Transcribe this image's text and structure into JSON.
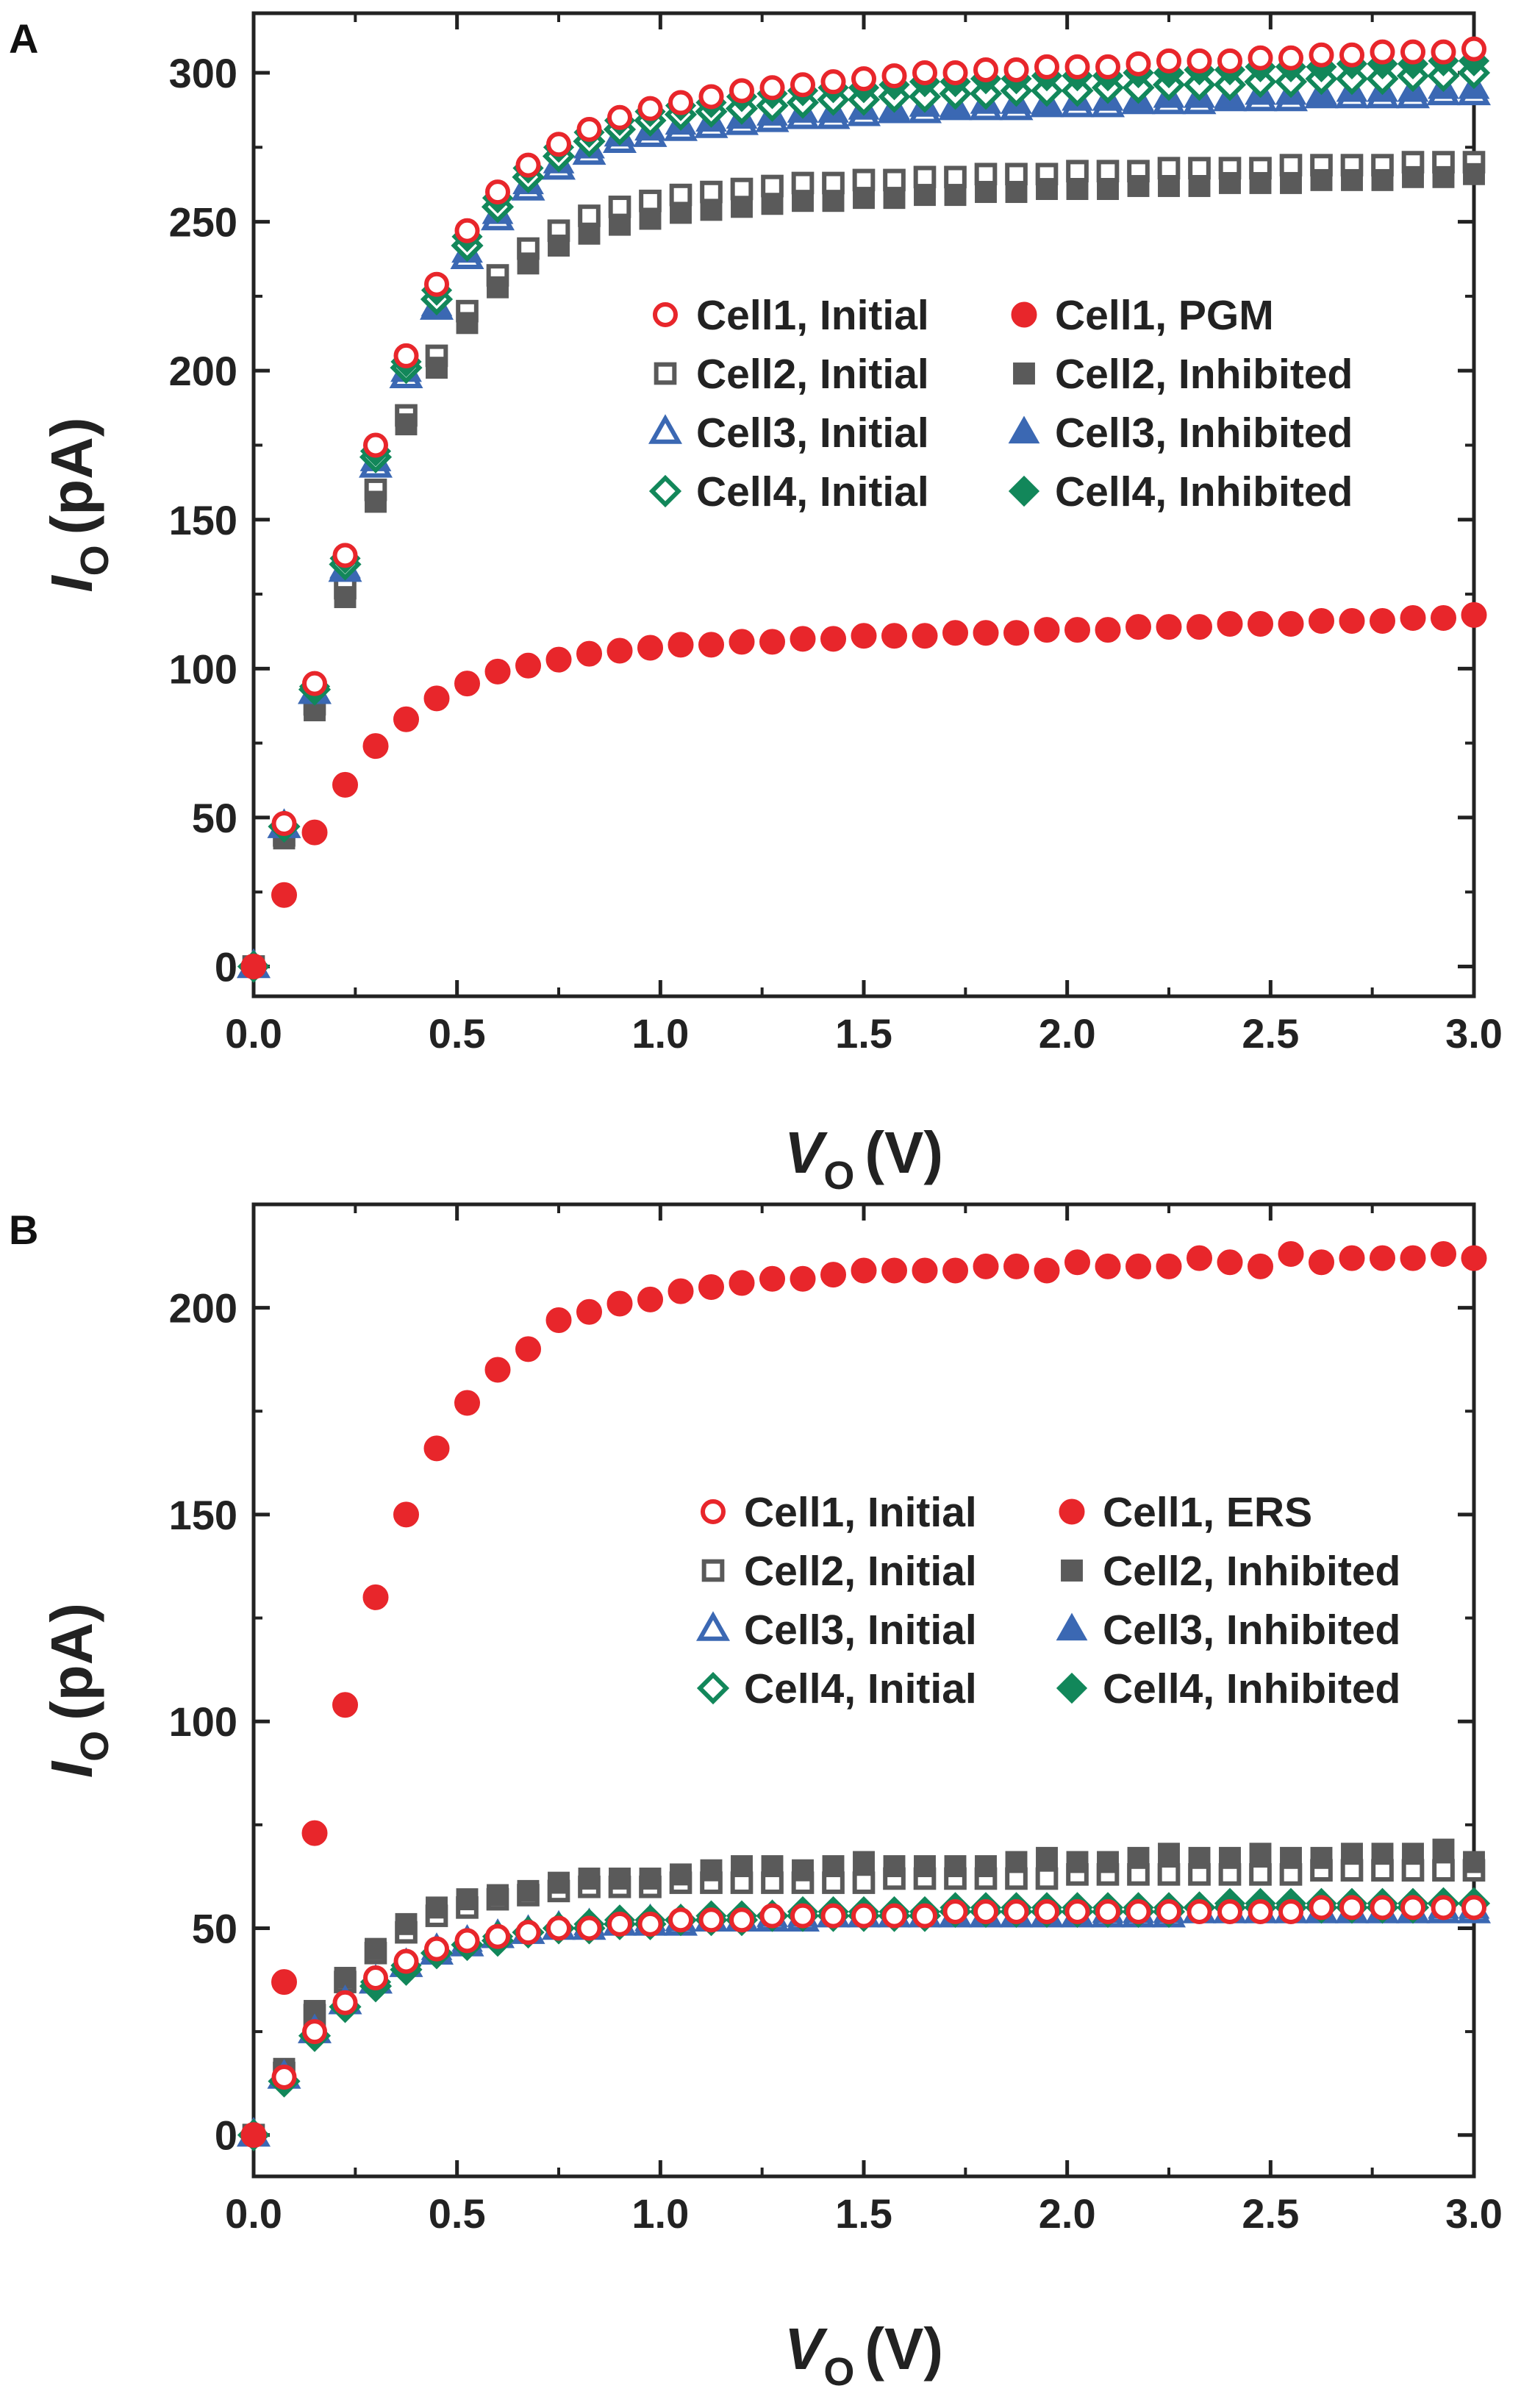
{
  "colors": {
    "cell1": "#e8262b",
    "cell2": "#5a5a5a",
    "cell3": "#3b68b3",
    "cell4": "#12875a",
    "axis": "#222222"
  },
  "chart_data": [
    {
      "type": "scatter",
      "panel_label": "A",
      "xlabel": "V",
      "xlabel_sub": "O",
      "xlabel_unit": "(V)",
      "ylabel": "I",
      "ylabel_sub": "O",
      "ylabel_unit": "(pA)",
      "xlim": [
        0,
        3
      ],
      "ylim": [
        -10,
        320
      ],
      "xticks": [
        0.0,
        0.5,
        1.0,
        1.5,
        2.0,
        2.5,
        3.0
      ],
      "xtick_labels": [
        "0.0",
        "0.5",
        "1.0",
        "1.5",
        "2.0",
        "2.5",
        "3.0"
      ],
      "yticks": [
        0,
        50,
        100,
        150,
        200,
        250,
        300
      ],
      "ytick_labels": [
        "0",
        "50",
        "100",
        "150",
        "200",
        "250",
        "300"
      ],
      "legend": {
        "position": "right-center",
        "entries": [
          {
            "label": "Cell1, Initial",
            "series": 0
          },
          {
            "label": "Cell1, PGM",
            "series": 1
          },
          {
            "label": "Cell2, Initial",
            "series": 2
          },
          {
            "label": "Cell2, Inhibited",
            "series": 3
          },
          {
            "label": "Cell3, Initial",
            "series": 4
          },
          {
            "label": "Cell3, Inhibited",
            "series": 5
          },
          {
            "label": "Cell4, Initial",
            "series": 6
          },
          {
            "label": "Cell4, Inhibited",
            "series": 7
          }
        ]
      },
      "x": [
        0.0,
        0.075,
        0.15,
        0.225,
        0.3,
        0.375,
        0.45,
        0.525,
        0.6,
        0.675,
        0.75,
        0.825,
        0.9,
        0.975,
        1.05,
        1.125,
        1.2,
        1.275,
        1.35,
        1.425,
        1.5,
        1.575,
        1.65,
        1.725,
        1.8,
        1.875,
        1.95,
        2.025,
        2.1,
        2.175,
        2.25,
        2.325,
        2.4,
        2.475,
        2.55,
        2.625,
        2.7,
        2.775,
        2.85,
        2.925,
        3.0
      ],
      "series": [
        {
          "name": "Cell1, Initial",
          "marker": "circle",
          "filled": false,
          "color": "cell1",
          "values": [
            0,
            48,
            95,
            138,
            175,
            205,
            229,
            247,
            260,
            269,
            276,
            281,
            285,
            288,
            290,
            292,
            294,
            295,
            296,
            297,
            298,
            299,
            300,
            300,
            301,
            301,
            302,
            302,
            302,
            303,
            304,
            304,
            304,
            305,
            305,
            306,
            306,
            307,
            307,
            307,
            308
          ]
        },
        {
          "name": "Cell1, PGM",
          "marker": "circle",
          "filled": true,
          "color": "cell1",
          "values": [
            0,
            24,
            45,
            61,
            74,
            83,
            90,
            95,
            99,
            101,
            103,
            105,
            106,
            107,
            108,
            108,
            109,
            109,
            110,
            110,
            111,
            111,
            111,
            112,
            112,
            112,
            113,
            113,
            113,
            114,
            114,
            114,
            115,
            115,
            115,
            116,
            116,
            116,
            117,
            117,
            118
          ]
        },
        {
          "name": "Cell2, Initial",
          "marker": "square",
          "filled": false,
          "color": "cell2",
          "values": [
            0,
            44,
            88,
            127,
            160,
            185,
            205,
            220,
            232,
            241,
            247,
            252,
            255,
            257,
            259,
            260,
            261,
            262,
            263,
            263,
            264,
            264,
            265,
            265,
            266,
            266,
            266,
            267,
            267,
            267,
            268,
            268,
            268,
            268,
            269,
            269,
            269,
            269,
            270,
            270,
            270
          ]
        },
        {
          "name": "Cell2, Inhibited",
          "marker": "square",
          "filled": true,
          "color": "cell2",
          "values": [
            0,
            43,
            86,
            124,
            156,
            182,
            201,
            216,
            228,
            236,
            242,
            246,
            249,
            251,
            253,
            254,
            255,
            256,
            257,
            257,
            258,
            258,
            259,
            259,
            260,
            260,
            261,
            261,
            261,
            262,
            262,
            262,
            263,
            263,
            263,
            264,
            264,
            264,
            265,
            265,
            266
          ]
        },
        {
          "name": "Cell3, Initial",
          "marker": "triangle",
          "filled": false,
          "color": "cell3",
          "values": [
            0,
            47,
            92,
            133,
            168,
            198,
            221,
            238,
            251,
            261,
            268,
            273,
            277,
            279,
            281,
            282,
            283,
            284,
            285,
            285,
            286,
            287,
            287,
            288,
            288,
            288,
            289,
            289,
            289,
            290,
            290,
            290,
            291,
            291,
            291,
            292,
            292,
            292,
            292,
            293,
            293
          ]
        },
        {
          "name": "Cell3, Inhibited",
          "marker": "triangle",
          "filled": true,
          "color": "cell3",
          "values": [
            0,
            47,
            92,
            134,
            170,
            200,
            222,
            240,
            253,
            263,
            270,
            275,
            279,
            281,
            283,
            284,
            285,
            286,
            287,
            287,
            288,
            288,
            289,
            289,
            290,
            290,
            290,
            291,
            291,
            291,
            292,
            292,
            292,
            293,
            293,
            293,
            294,
            294,
            294,
            295,
            295
          ]
        },
        {
          "name": "Cell4, Initial",
          "marker": "diamond",
          "filled": false,
          "color": "cell4",
          "values": [
            0,
            47,
            93,
            135,
            171,
            201,
            224,
            242,
            255,
            265,
            272,
            277,
            281,
            284,
            286,
            287,
            288,
            289,
            290,
            291,
            291,
            292,
            292,
            293,
            293,
            294,
            294,
            294,
            295,
            295,
            296,
            296,
            296,
            297,
            297,
            298,
            298,
            298,
            299,
            299,
            300
          ]
        },
        {
          "name": "Cell4, Inhibited",
          "marker": "diamond",
          "filled": true,
          "color": "cell4",
          "values": [
            0,
            47,
            94,
            137,
            173,
            203,
            227,
            245,
            258,
            268,
            275,
            280,
            284,
            287,
            289,
            290,
            292,
            293,
            294,
            295,
            295,
            296,
            297,
            297,
            298,
            298,
            299,
            299,
            299,
            300,
            300,
            301,
            301,
            302,
            302,
            302,
            303,
            303,
            303,
            304,
            304
          ]
        }
      ]
    },
    {
      "type": "scatter",
      "panel_label": "B",
      "xlabel": "V",
      "xlabel_sub": "O",
      "xlabel_unit": "(V)",
      "ylabel": "I",
      "ylabel_sub": "O",
      "ylabel_unit": "(pA)",
      "xlim": [
        0,
        3
      ],
      "ylim": [
        -10,
        225
      ],
      "xticks": [
        0.0,
        0.5,
        1.0,
        1.5,
        2.0,
        2.5,
        3.0
      ],
      "xtick_labels": [
        "0.0",
        "0.5",
        "1.0",
        "1.5",
        "2.0",
        "2.5",
        "3.0"
      ],
      "yticks": [
        0,
        50,
        100,
        150,
        200
      ],
      "ytick_labels": [
        "0",
        "50",
        "100",
        "150",
        "200"
      ],
      "legend": {
        "position": "right-center",
        "entries": [
          {
            "label": "Cell1, Initial",
            "series": 0
          },
          {
            "label": "Cell1, ERS",
            "series": 1
          },
          {
            "label": "Cell2, Initial",
            "series": 2
          },
          {
            "label": "Cell2, Inhibited",
            "series": 3
          },
          {
            "label": "Cell3, Initial",
            "series": 4
          },
          {
            "label": "Cell3, Inhibited",
            "series": 5
          },
          {
            "label": "Cell4, Initial",
            "series": 6
          },
          {
            "label": "Cell4, Inhibited",
            "series": 7
          }
        ]
      },
      "x": [
        0.0,
        0.075,
        0.15,
        0.225,
        0.3,
        0.375,
        0.45,
        0.525,
        0.6,
        0.675,
        0.75,
        0.825,
        0.9,
        0.975,
        1.05,
        1.125,
        1.2,
        1.275,
        1.35,
        1.425,
        1.5,
        1.575,
        1.65,
        1.725,
        1.8,
        1.875,
        1.95,
        2.025,
        2.1,
        2.175,
        2.25,
        2.325,
        2.4,
        2.475,
        2.55,
        2.625,
        2.7,
        2.775,
        2.85,
        2.925,
        3.0
      ],
      "series": [
        {
          "name": "Cell1, Initial",
          "marker": "circle",
          "filled": false,
          "color": "cell1",
          "values": [
            0,
            14,
            25,
            32,
            38,
            42,
            45,
            47,
            48,
            49,
            50,
            50,
            51,
            51,
            52,
            52,
            52,
            53,
            53,
            53,
            53,
            53,
            53,
            54,
            54,
            54,
            54,
            54,
            54,
            54,
            54,
            54,
            54,
            54,
            54,
            55,
            55,
            55,
            55,
            55,
            55
          ]
        },
        {
          "name": "Cell1, ERS",
          "marker": "circle",
          "filled": true,
          "color": "cell1",
          "values": [
            0,
            37,
            73,
            104,
            130,
            150,
            166,
            177,
            185,
            190,
            197,
            199,
            201,
            202,
            204,
            205,
            206,
            207,
            207,
            208,
            209,
            209,
            209,
            209,
            210,
            210,
            209,
            211,
            210,
            210,
            210,
            212,
            211,
            210,
            213,
            211,
            212,
            212,
            212,
            213,
            212
          ]
        },
        {
          "name": "Cell2, Initial",
          "marker": "square",
          "filled": false,
          "color": "cell2",
          "values": [
            0,
            15,
            29,
            37,
            44,
            49,
            53,
            55,
            57,
            58,
            59,
            60,
            60,
            60,
            61,
            61,
            61,
            61,
            61,
            61,
            61,
            62,
            62,
            62,
            62,
            62,
            62,
            63,
            63,
            63,
            63,
            63,
            63,
            63,
            63,
            64,
            64,
            64,
            64,
            64,
            64
          ]
        },
        {
          "name": "Cell2, Inhibited",
          "marker": "square",
          "filled": true,
          "color": "cell2",
          "values": [
            0,
            16,
            30,
            38,
            45,
            51,
            55,
            57,
            58,
            59,
            61,
            62,
            62,
            62,
            63,
            64,
            65,
            65,
            64,
            65,
            66,
            65,
            65,
            65,
            65,
            66,
            67,
            66,
            66,
            67,
            68,
            67,
            67,
            68,
            67,
            67,
            68,
            68,
            68,
            69,
            66
          ]
        },
        {
          "name": "Cell3, Initial",
          "marker": "triangle",
          "filled": false,
          "color": "cell3",
          "values": [
            0,
            14,
            25,
            32,
            37,
            41,
            44,
            46,
            48,
            49,
            50,
            50,
            51,
            51,
            51,
            52,
            52,
            52,
            52,
            53,
            53,
            53,
            53,
            53,
            53,
            53,
            53,
            53,
            53,
            53,
            53,
            54,
            54,
            54,
            54,
            54,
            54,
            54,
            54,
            54,
            54
          ]
        },
        {
          "name": "Cell3, Inhibited",
          "marker": "triangle",
          "filled": true,
          "color": "cell3",
          "values": [
            0,
            14,
            25,
            32,
            37,
            41,
            45,
            47,
            48,
            49,
            50,
            51,
            51,
            52,
            52,
            52,
            52,
            53,
            53,
            53,
            53,
            53,
            53,
            53,
            53,
            53,
            53,
            53,
            54,
            54,
            54,
            54,
            54,
            54,
            54,
            54,
            54,
            54,
            54,
            55,
            55
          ]
        },
        {
          "name": "Cell4, Initial",
          "marker": "diamond",
          "filled": false,
          "color": "cell4",
          "values": [
            0,
            13,
            24,
            31,
            36,
            40,
            44,
            46,
            47,
            49,
            50,
            50,
            51,
            51,
            52,
            52,
            52,
            53,
            53,
            53,
            53,
            53,
            53,
            54,
            54,
            54,
            54,
            54,
            54,
            54,
            54,
            55,
            55,
            55,
            55,
            55,
            55,
            55,
            55,
            56,
            56
          ]
        },
        {
          "name": "Cell4, Inhibited",
          "marker": "diamond",
          "filled": true,
          "color": "cell4",
          "values": [
            0,
            13,
            24,
            31,
            37,
            41,
            44,
            46,
            48,
            49,
            50,
            51,
            52,
            52,
            52,
            53,
            53,
            53,
            54,
            54,
            54,
            54,
            54,
            55,
            55,
            55,
            55,
            55,
            55,
            55,
            55,
            55,
            56,
            56,
            56,
            56,
            56,
            56,
            56,
            56,
            56
          ]
        }
      ]
    }
  ]
}
